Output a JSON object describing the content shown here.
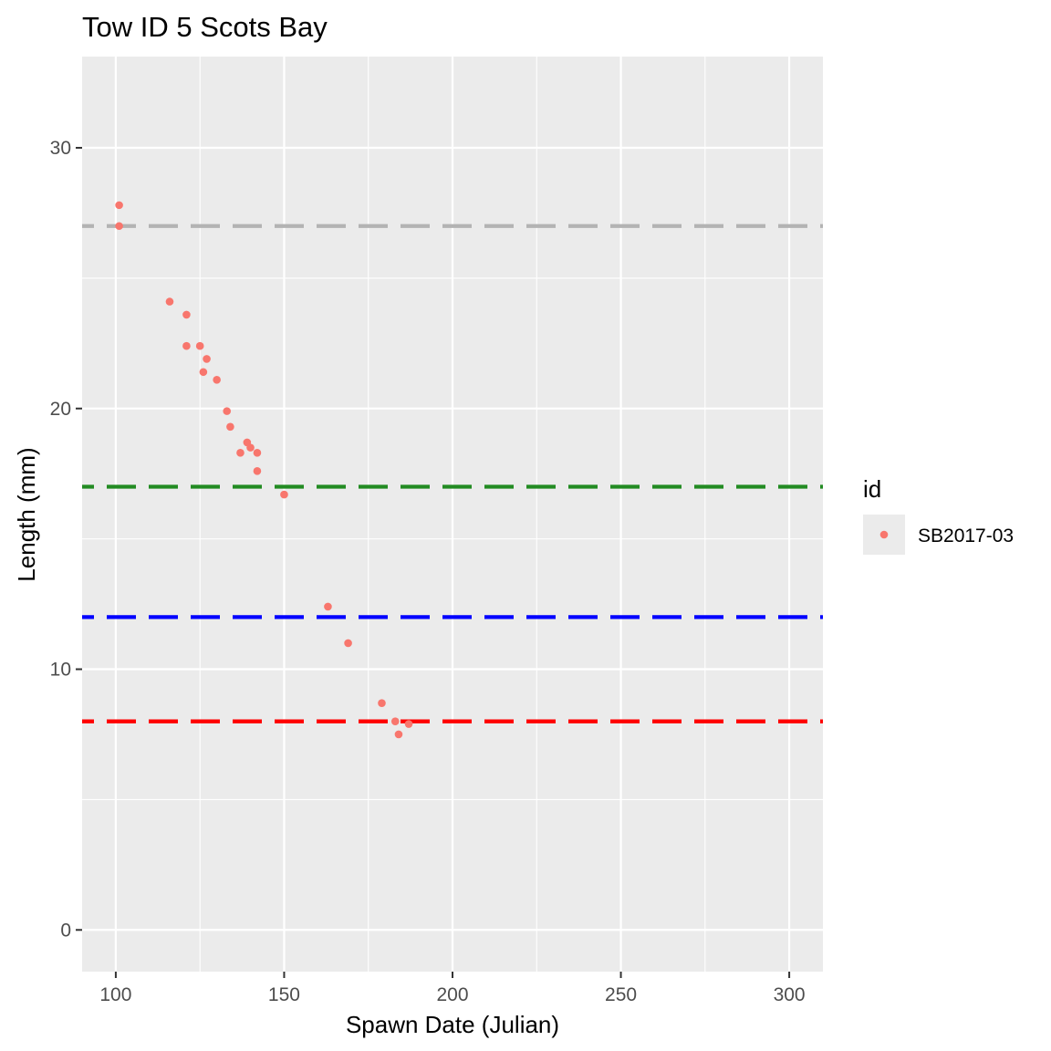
{
  "chart_data": {
    "type": "scatter",
    "title": "Tow ID 5 Scots Bay",
    "xlabel": "Spawn Date (Julian)",
    "ylabel": "Length (mm)",
    "xlim": [
      90,
      310
    ],
    "ylim": [
      -1.6,
      33.5
    ],
    "x_ticks": [
      100,
      150,
      200,
      250,
      300
    ],
    "y_ticks": [
      0,
      10,
      20,
      30
    ],
    "grid": true,
    "panel_background": "#ebebeb",
    "legend": {
      "title": "id",
      "placement": "right",
      "entries": [
        {
          "label": "SB2017-03",
          "color": "#f8766d"
        }
      ]
    },
    "series": [
      {
        "name": "SB2017-03",
        "color": "#f8766d",
        "points": [
          {
            "x": 101,
            "y": 27.8
          },
          {
            "x": 101,
            "y": 27.0
          },
          {
            "x": 116,
            "y": 24.1
          },
          {
            "x": 121,
            "y": 23.6
          },
          {
            "x": 121,
            "y": 22.4
          },
          {
            "x": 125,
            "y": 22.4
          },
          {
            "x": 127,
            "y": 21.9
          },
          {
            "x": 126,
            "y": 21.4
          },
          {
            "x": 130,
            "y": 21.1
          },
          {
            "x": 133,
            "y": 19.9
          },
          {
            "x": 134,
            "y": 19.3
          },
          {
            "x": 137,
            "y": 18.3
          },
          {
            "x": 139,
            "y": 18.7
          },
          {
            "x": 140,
            "y": 18.5
          },
          {
            "x": 142,
            "y": 18.3
          },
          {
            "x": 142,
            "y": 17.6
          },
          {
            "x": 150,
            "y": 16.7
          },
          {
            "x": 163,
            "y": 12.4
          },
          {
            "x": 169,
            "y": 11.0
          },
          {
            "x": 179,
            "y": 8.7
          },
          {
            "x": 183,
            "y": 8.0
          },
          {
            "x": 184,
            "y": 7.5
          },
          {
            "x": 187,
            "y": 7.9
          }
        ]
      }
    ],
    "reference_lines": [
      {
        "y": 27,
        "color": "#b3b3b3",
        "style": "dashed"
      },
      {
        "y": 17,
        "color": "#228b22",
        "style": "dashed"
      },
      {
        "y": 12,
        "color": "#0000ff",
        "style": "dashed"
      },
      {
        "y": 8,
        "color": "#ff0000",
        "style": "dashed"
      }
    ]
  }
}
